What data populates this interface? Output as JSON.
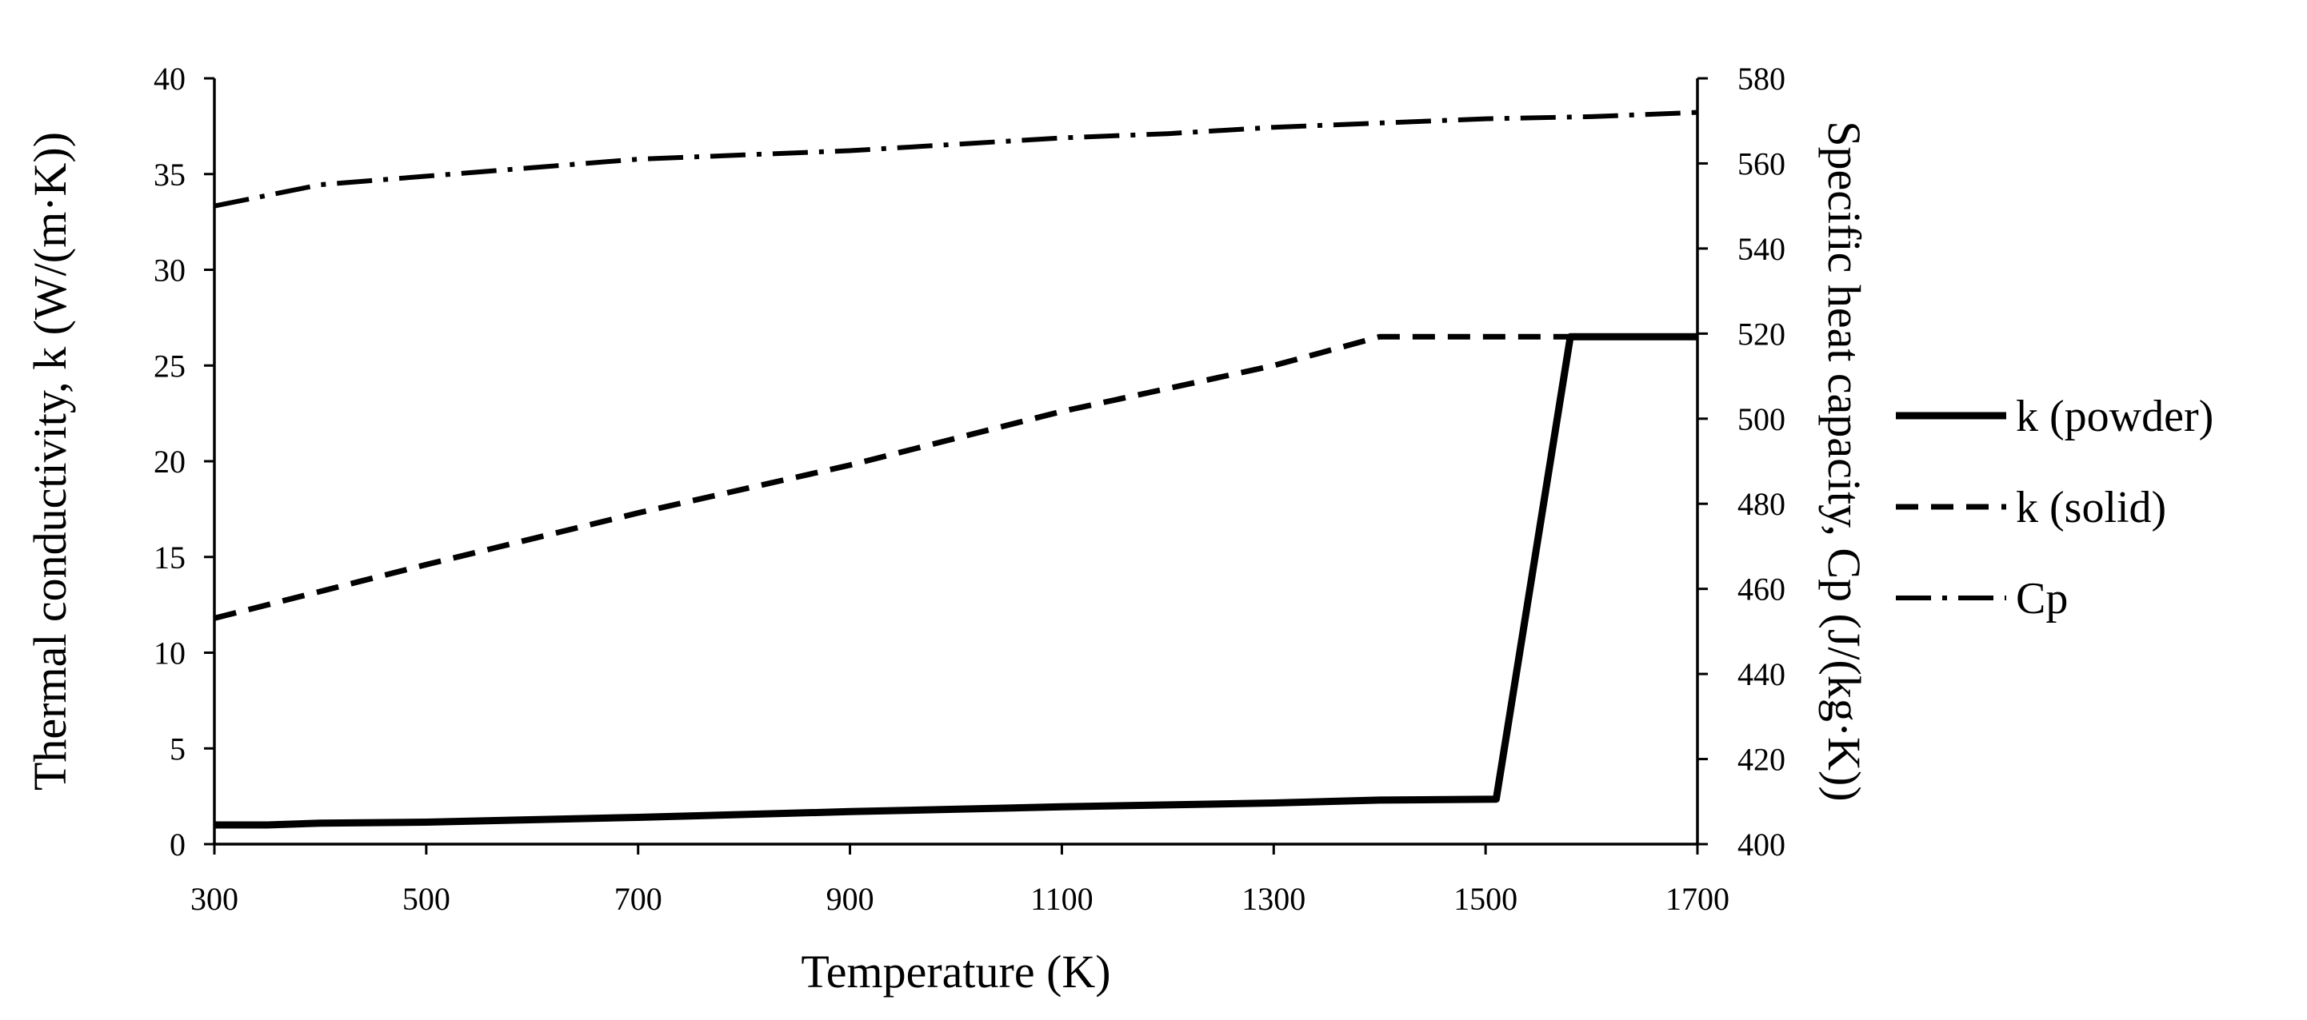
{
  "chart_data": {
    "type": "line",
    "xlabel": "Temperature (K)",
    "ylabel": "Thermal conductivity, k (W/(m·K))",
    "y2label": "Specific heat capacity, Cp (J/(kg·K))",
    "xlim": [
      300,
      1700
    ],
    "ylim": [
      0,
      40
    ],
    "y2lim": [
      400,
      580
    ],
    "x_ticks": [
      300,
      500,
      700,
      900,
      1100,
      1300,
      1500,
      1700
    ],
    "y_ticks": [
      0,
      5,
      10,
      15,
      20,
      25,
      30,
      35,
      40
    ],
    "y2_ticks": [
      400,
      420,
      440,
      460,
      480,
      500,
      520,
      540,
      560,
      580
    ],
    "legend_position": "right",
    "series": [
      {
        "name": "k (powder)",
        "axis": "left",
        "style": "solid",
        "x": [
          300,
          350,
          400,
          500,
          700,
          900,
          1100,
          1300,
          1400,
          1510,
          1580,
          1700
        ],
        "y": [
          1.0,
          1.0,
          1.1,
          1.15,
          1.4,
          1.7,
          1.95,
          2.15,
          2.3,
          2.35,
          26.5,
          26.5
        ]
      },
      {
        "name": "k (solid)",
        "axis": "left",
        "style": "dashed",
        "x": [
          300,
          500,
          700,
          900,
          1100,
          1300,
          1400,
          1500,
          1600,
          1700
        ],
        "y": [
          11.8,
          14.6,
          17.3,
          19.8,
          22.6,
          25.0,
          26.5,
          26.5,
          26.5,
          26.5
        ]
      },
      {
        "name": "Cp",
        "axis": "right",
        "style": "dash-dot",
        "x": [
          300,
          400,
          500,
          600,
          700,
          800,
          900,
          1000,
          1100,
          1200,
          1300,
          1400,
          1500,
          1600,
          1700
        ],
        "y": [
          550,
          555,
          557,
          559,
          561,
          562,
          563,
          564.5,
          566,
          567,
          568.5,
          569.5,
          570.5,
          571,
          572
        ]
      }
    ]
  }
}
